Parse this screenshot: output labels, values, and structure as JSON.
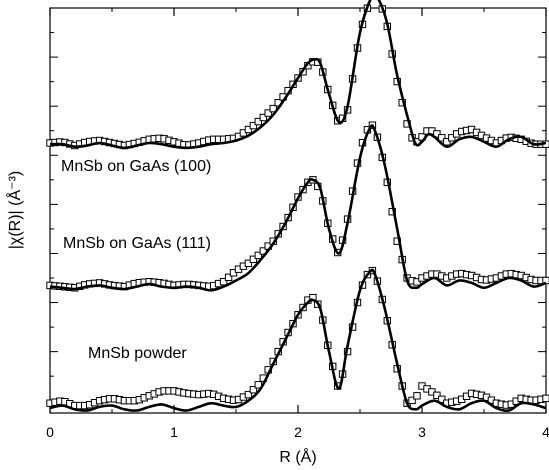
{
  "chart_data": {
    "type": "line",
    "xlabel": "R (Å)",
    "ylabel": "|χ(R)| (Å⁻³)",
    "xlim": [
      0,
      4
    ],
    "ylim": [
      0,
      3.3
    ],
    "xticks": [
      "0",
      "1",
      "2",
      "3",
      "4"
    ],
    "grid": false,
    "legend": "none",
    "marker_style": "open square (experiment), solid line (fit)",
    "series": [
      {
        "name": "MnSb on GaAs (100)",
        "offset": 2.15,
        "fit": [
          [
            0,
            0.04
          ],
          [
            0.1,
            0.04
          ],
          [
            0.2,
            0.02
          ],
          [
            0.3,
            0.03
          ],
          [
            0.4,
            0.05
          ],
          [
            0.5,
            0.03
          ],
          [
            0.6,
            0.01
          ],
          [
            0.7,
            0.03
          ],
          [
            0.8,
            0.05
          ],
          [
            0.9,
            0.04
          ],
          [
            1.0,
            0.02
          ],
          [
            1.1,
            0.01
          ],
          [
            1.2,
            0.02
          ],
          [
            1.3,
            0.04
          ],
          [
            1.4,
            0.05
          ],
          [
            1.5,
            0.07
          ],
          [
            1.6,
            0.11
          ],
          [
            1.7,
            0.18
          ],
          [
            1.8,
            0.28
          ],
          [
            1.9,
            0.42
          ],
          [
            2.0,
            0.58
          ],
          [
            2.08,
            0.7
          ],
          [
            2.13,
            0.73
          ],
          [
            2.18,
            0.7
          ],
          [
            2.25,
            0.45
          ],
          [
            2.33,
            0.22
          ],
          [
            2.4,
            0.35
          ],
          [
            2.5,
            0.95
          ],
          [
            2.6,
            1.25
          ],
          [
            2.65,
            1.22
          ],
          [
            2.72,
            1.02
          ],
          [
            2.8,
            0.6
          ],
          [
            2.9,
            0.2
          ],
          [
            2.95,
            0.04
          ],
          [
            3.0,
            0.06
          ],
          [
            3.05,
            0.12
          ],
          [
            3.1,
            0.1
          ],
          [
            3.2,
            0.02
          ],
          [
            3.3,
            0.08
          ],
          [
            3.4,
            0.1
          ],
          [
            3.5,
            0.06
          ],
          [
            3.6,
            0.02
          ],
          [
            3.7,
            0.08
          ],
          [
            3.8,
            0.1
          ],
          [
            3.9,
            0.04
          ],
          [
            4.0,
            0.05
          ]
        ],
        "data": [
          [
            0,
            0.05
          ],
          [
            0.1,
            0.06
          ],
          [
            0.2,
            0.03
          ],
          [
            0.3,
            0.06
          ],
          [
            0.4,
            0.07
          ],
          [
            0.5,
            0.05
          ],
          [
            0.6,
            0.03
          ],
          [
            0.7,
            0.05
          ],
          [
            0.8,
            0.08
          ],
          [
            0.9,
            0.09
          ],
          [
            1.0,
            0.06
          ],
          [
            1.1,
            0.03
          ],
          [
            1.2,
            0.05
          ],
          [
            1.3,
            0.08
          ],
          [
            1.4,
            0.08
          ],
          [
            1.5,
            0.09
          ],
          [
            1.6,
            0.16
          ],
          [
            1.7,
            0.24
          ],
          [
            1.8,
            0.33
          ],
          [
            1.9,
            0.45
          ],
          [
            2.0,
            0.58
          ],
          [
            2.08,
            0.68
          ],
          [
            2.13,
            0.72
          ],
          [
            2.18,
            0.7
          ],
          [
            2.25,
            0.45
          ],
          [
            2.33,
            0.2
          ],
          [
            2.4,
            0.32
          ],
          [
            2.5,
            0.95
          ],
          [
            2.6,
            1.28
          ],
          [
            2.65,
            1.25
          ],
          [
            2.72,
            1.0
          ],
          [
            2.8,
            0.55
          ],
          [
            2.9,
            0.12
          ],
          [
            2.95,
            0.05
          ],
          [
            3.0,
            0.1
          ],
          [
            3.05,
            0.16
          ],
          [
            3.1,
            0.14
          ],
          [
            3.2,
            0.06
          ],
          [
            3.3,
            0.14
          ],
          [
            3.4,
            0.16
          ],
          [
            3.5,
            0.1
          ],
          [
            3.6,
            0.05
          ],
          [
            3.7,
            0.1
          ],
          [
            3.8,
            0.08
          ],
          [
            3.9,
            0.04
          ],
          [
            4.0,
            0.04
          ]
        ]
      },
      {
        "name": "MnSb on GaAs (111)",
        "offset": 1.0,
        "fit": [
          [
            0,
            0.03
          ],
          [
            0.1,
            0.02
          ],
          [
            0.2,
            0.01
          ],
          [
            0.3,
            0.03
          ],
          [
            0.4,
            0.04
          ],
          [
            0.5,
            0.02
          ],
          [
            0.6,
            0.01
          ],
          [
            0.7,
            0.03
          ],
          [
            0.8,
            0.05
          ],
          [
            0.9,
            0.03
          ],
          [
            1.0,
            0.02
          ],
          [
            1.1,
            0.03
          ],
          [
            1.2,
            0.02
          ],
          [
            1.3,
            0.0
          ],
          [
            1.4,
            0.03
          ],
          [
            1.5,
            0.08
          ],
          [
            1.6,
            0.14
          ],
          [
            1.7,
            0.25
          ],
          [
            1.8,
            0.38
          ],
          [
            1.9,
            0.55
          ],
          [
            2.0,
            0.75
          ],
          [
            2.08,
            0.88
          ],
          [
            2.12,
            0.9
          ],
          [
            2.18,
            0.83
          ],
          [
            2.25,
            0.5
          ],
          [
            2.33,
            0.3
          ],
          [
            2.4,
            0.55
          ],
          [
            2.5,
            1.08
          ],
          [
            2.58,
            1.32
          ],
          [
            2.62,
            1.3
          ],
          [
            2.7,
            1.02
          ],
          [
            2.8,
            0.5
          ],
          [
            2.88,
            0.08
          ],
          [
            2.95,
            0.02
          ],
          [
            3.0,
            0.05
          ],
          [
            3.1,
            0.1
          ],
          [
            3.2,
            0.04
          ],
          [
            3.3,
            0.08
          ],
          [
            3.4,
            0.06
          ],
          [
            3.5,
            0.02
          ],
          [
            3.6,
            0.06
          ],
          [
            3.7,
            0.1
          ],
          [
            3.8,
            0.08
          ],
          [
            3.9,
            0.03
          ],
          [
            4.0,
            0.06
          ]
        ],
        "data": [
          [
            0,
            0.04
          ],
          [
            0.1,
            0.03
          ],
          [
            0.2,
            0.02
          ],
          [
            0.3,
            0.05
          ],
          [
            0.4,
            0.06
          ],
          [
            0.5,
            0.04
          ],
          [
            0.6,
            0.03
          ],
          [
            0.7,
            0.06
          ],
          [
            0.8,
            0.07
          ],
          [
            0.9,
            0.06
          ],
          [
            1.0,
            0.04
          ],
          [
            1.1,
            0.05
          ],
          [
            1.2,
            0.04
          ],
          [
            1.3,
            0.03
          ],
          [
            1.4,
            0.07
          ],
          [
            1.5,
            0.16
          ],
          [
            1.6,
            0.22
          ],
          [
            1.7,
            0.3
          ],
          [
            1.8,
            0.4
          ],
          [
            1.9,
            0.55
          ],
          [
            2.0,
            0.76
          ],
          [
            2.08,
            0.88
          ],
          [
            2.12,
            0.9
          ],
          [
            2.18,
            0.82
          ],
          [
            2.25,
            0.5
          ],
          [
            2.33,
            0.28
          ],
          [
            2.4,
            0.58
          ],
          [
            2.5,
            1.15
          ],
          [
            2.58,
            1.36
          ],
          [
            2.62,
            1.33
          ],
          [
            2.7,
            1.0
          ],
          [
            2.8,
            0.4
          ],
          [
            2.88,
            0.1
          ],
          [
            2.95,
            0.06
          ],
          [
            3.0,
            0.1
          ],
          [
            3.1,
            0.14
          ],
          [
            3.2,
            0.1
          ],
          [
            3.3,
            0.14
          ],
          [
            3.4,
            0.12
          ],
          [
            3.5,
            0.08
          ],
          [
            3.6,
            0.1
          ],
          [
            3.7,
            0.14
          ],
          [
            3.8,
            0.12
          ],
          [
            3.9,
            0.08
          ],
          [
            4.0,
            0.08
          ]
        ]
      },
      {
        "name": "MnSb powder",
        "offset": 0.0,
        "fit": [
          [
            0,
            0.04
          ],
          [
            0.1,
            0.06
          ],
          [
            0.2,
            0.03
          ],
          [
            0.3,
            0.02
          ],
          [
            0.4,
            0.05
          ],
          [
            0.5,
            0.06
          ],
          [
            0.6,
            0.03
          ],
          [
            0.7,
            0.02
          ],
          [
            0.8,
            0.05
          ],
          [
            0.9,
            0.07
          ],
          [
            1.0,
            0.04
          ],
          [
            1.1,
            0.02
          ],
          [
            1.2,
            0.05
          ],
          [
            1.3,
            0.08
          ],
          [
            1.4,
            0.06
          ],
          [
            1.5,
            0.05
          ],
          [
            1.6,
            0.1
          ],
          [
            1.7,
            0.2
          ],
          [
            1.8,
            0.4
          ],
          [
            1.9,
            0.6
          ],
          [
            2.0,
            0.8
          ],
          [
            2.08,
            0.9
          ],
          [
            2.12,
            0.92
          ],
          [
            2.18,
            0.85
          ],
          [
            2.25,
            0.5
          ],
          [
            2.33,
            0.2
          ],
          [
            2.4,
            0.55
          ],
          [
            2.5,
            1.0
          ],
          [
            2.58,
            1.15
          ],
          [
            2.62,
            1.13
          ],
          [
            2.7,
            0.85
          ],
          [
            2.8,
            0.4
          ],
          [
            2.88,
            0.08
          ],
          [
            2.95,
            0.03
          ],
          [
            3.0,
            0.06
          ],
          [
            3.1,
            0.1
          ],
          [
            3.2,
            0.05
          ],
          [
            3.3,
            0.03
          ],
          [
            3.4,
            0.08
          ],
          [
            3.5,
            0.1
          ],
          [
            3.6,
            0.04
          ],
          [
            3.7,
            0.02
          ],
          [
            3.8,
            0.08
          ],
          [
            3.9,
            0.07
          ],
          [
            4.0,
            0.04
          ]
        ],
        "data": [
          [
            0,
            0.08
          ],
          [
            0.1,
            0.1
          ],
          [
            0.2,
            0.06
          ],
          [
            0.3,
            0.06
          ],
          [
            0.4,
            0.1
          ],
          [
            0.5,
            0.12
          ],
          [
            0.6,
            0.1
          ],
          [
            0.7,
            0.1
          ],
          [
            0.8,
            0.14
          ],
          [
            0.9,
            0.18
          ],
          [
            1.0,
            0.18
          ],
          [
            1.1,
            0.16
          ],
          [
            1.2,
            0.15
          ],
          [
            1.3,
            0.16
          ],
          [
            1.4,
            0.12
          ],
          [
            1.5,
            0.1
          ],
          [
            1.6,
            0.15
          ],
          [
            1.7,
            0.25
          ],
          [
            1.8,
            0.42
          ],
          [
            1.9,
            0.62
          ],
          [
            2.0,
            0.8
          ],
          [
            2.08,
            0.92
          ],
          [
            2.12,
            0.94
          ],
          [
            2.18,
            0.86
          ],
          [
            2.25,
            0.5
          ],
          [
            2.33,
            0.18
          ],
          [
            2.4,
            0.5
          ],
          [
            2.5,
            1.0
          ],
          [
            2.58,
            1.17
          ],
          [
            2.62,
            1.15
          ],
          [
            2.7,
            0.85
          ],
          [
            2.8,
            0.36
          ],
          [
            2.88,
            0.08
          ],
          [
            2.95,
            0.12
          ],
          [
            3.0,
            0.22
          ],
          [
            3.1,
            0.16
          ],
          [
            3.2,
            0.08
          ],
          [
            3.3,
            0.1
          ],
          [
            3.4,
            0.16
          ],
          [
            3.5,
            0.14
          ],
          [
            3.6,
            0.08
          ],
          [
            3.7,
            0.06
          ],
          [
            3.8,
            0.12
          ],
          [
            3.9,
            0.1
          ],
          [
            4.0,
            0.12
          ]
        ]
      }
    ]
  }
}
